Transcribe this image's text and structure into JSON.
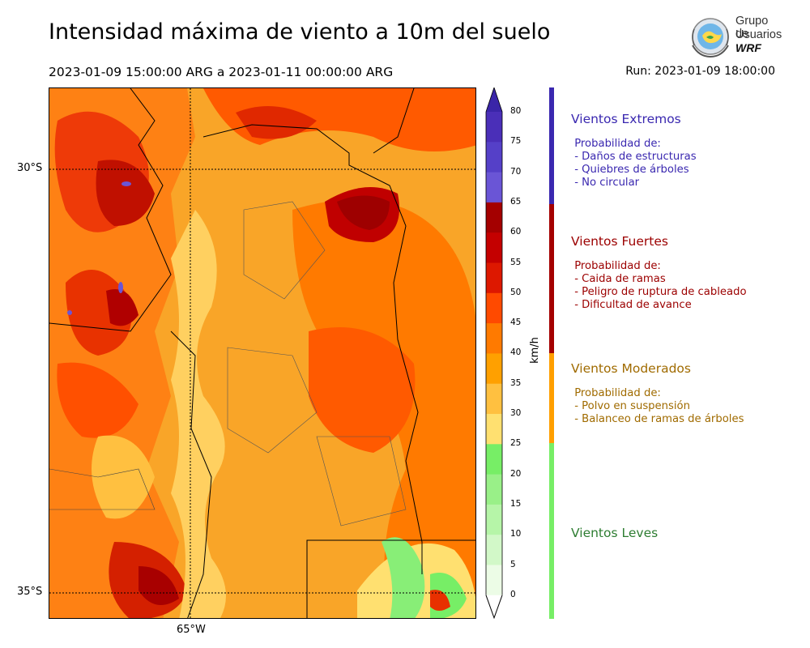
{
  "header": {
    "title": "Intensidad máxima de viento a 10m del suelo",
    "period": "2023-01-09 15:00:00 ARG  a  2023-01-11 00:00:00 ARG",
    "run": "Run: 2023-01-09 18:00:00"
  },
  "logo": {
    "line1": "Grupo de",
    "line2": "Usuarios",
    "line3": "WRF"
  },
  "map": {
    "lat_labels": [
      "30°S",
      "35°S"
    ],
    "lon_labels": [
      "65°W"
    ]
  },
  "colorbar": {
    "unit": "km/h",
    "ticks": [
      "80",
      "75",
      "70",
      "65",
      "60",
      "55",
      "50",
      "45",
      "40",
      "35",
      "30",
      "25",
      "20",
      "15",
      "10",
      "5",
      "0"
    ],
    "colors": [
      "#4a2fb8",
      "#5540c8",
      "#6a55d6",
      "#a40000",
      "#c40000",
      "#dd1800",
      "#ff4a00",
      "#ff7a00",
      "#ffa000",
      "#ffc040",
      "#ffe070",
      "#77ee66",
      "#99f088",
      "#b6f5a8",
      "#d2f8c8",
      "#ecfce6"
    ],
    "top_color": "#3a25a8"
  },
  "categories": [
    {
      "title": "Vientos Extremos",
      "color": "#3a28b0",
      "lines": [
        " Probabilidad de:",
        " - Daños de estructuras",
        " - Quiebres de árboles",
        " - No circular"
      ]
    },
    {
      "title": "Vientos Fuertes",
      "color": "#9c0000",
      "lines": [
        " Probabilidad de:",
        " - Caida de ramas",
        " - Peligro de ruptura de cableado",
        " - Dificultad de avance"
      ]
    },
    {
      "title": "Vientos Moderados",
      "color": "#a06b00",
      "lines": [
        " Probabilidad de:",
        " - Polvo en suspensión",
        " - Balanceo de ramas de árboles"
      ]
    },
    {
      "title": "Vientos Leves",
      "color": "#2e7d32",
      "lines": []
    }
  ]
}
